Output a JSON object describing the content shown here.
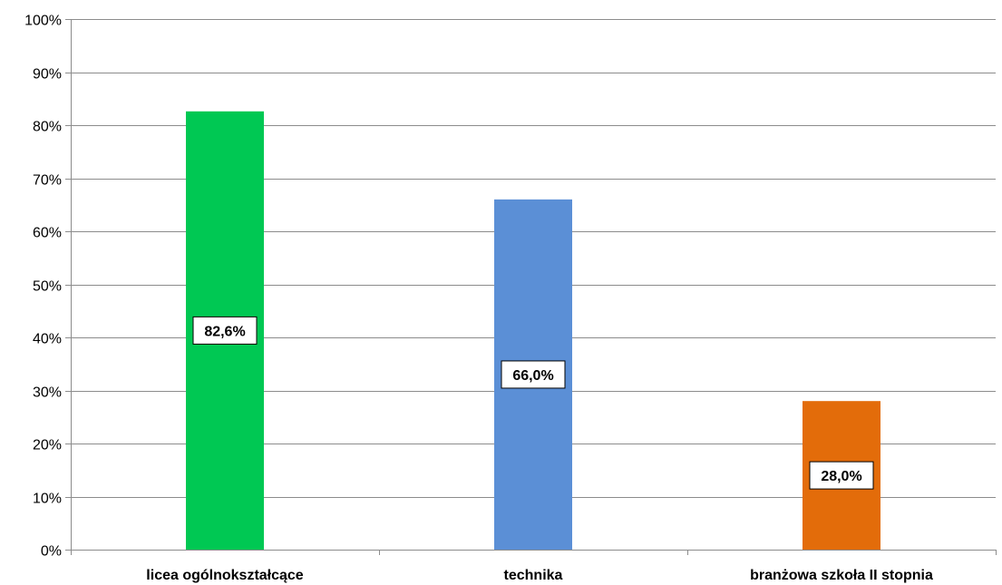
{
  "chart_data": {
    "type": "bar",
    "categories": [
      "licea ogólnokształcące",
      "technika",
      "branżowa szkoła II stopnia"
    ],
    "values": [
      82.6,
      66.0,
      28.0
    ],
    "data_labels": [
      "82,6%",
      "66,0%",
      "28,0%"
    ],
    "bar_colors": [
      "#00c853",
      "#5b8fd6",
      "#e36c0a"
    ],
    "ylim": [
      0,
      100
    ],
    "yticks": [
      0,
      10,
      20,
      30,
      40,
      50,
      60,
      70,
      80,
      90,
      100
    ],
    "ytick_labels": [
      "0%",
      "10%",
      "20%",
      "30%",
      "40%",
      "50%",
      "60%",
      "70%",
      "80%",
      "90%",
      "100%"
    ],
    "grid": true,
    "legend": "none",
    "title": "",
    "xlabel": "",
    "ylabel": ""
  }
}
